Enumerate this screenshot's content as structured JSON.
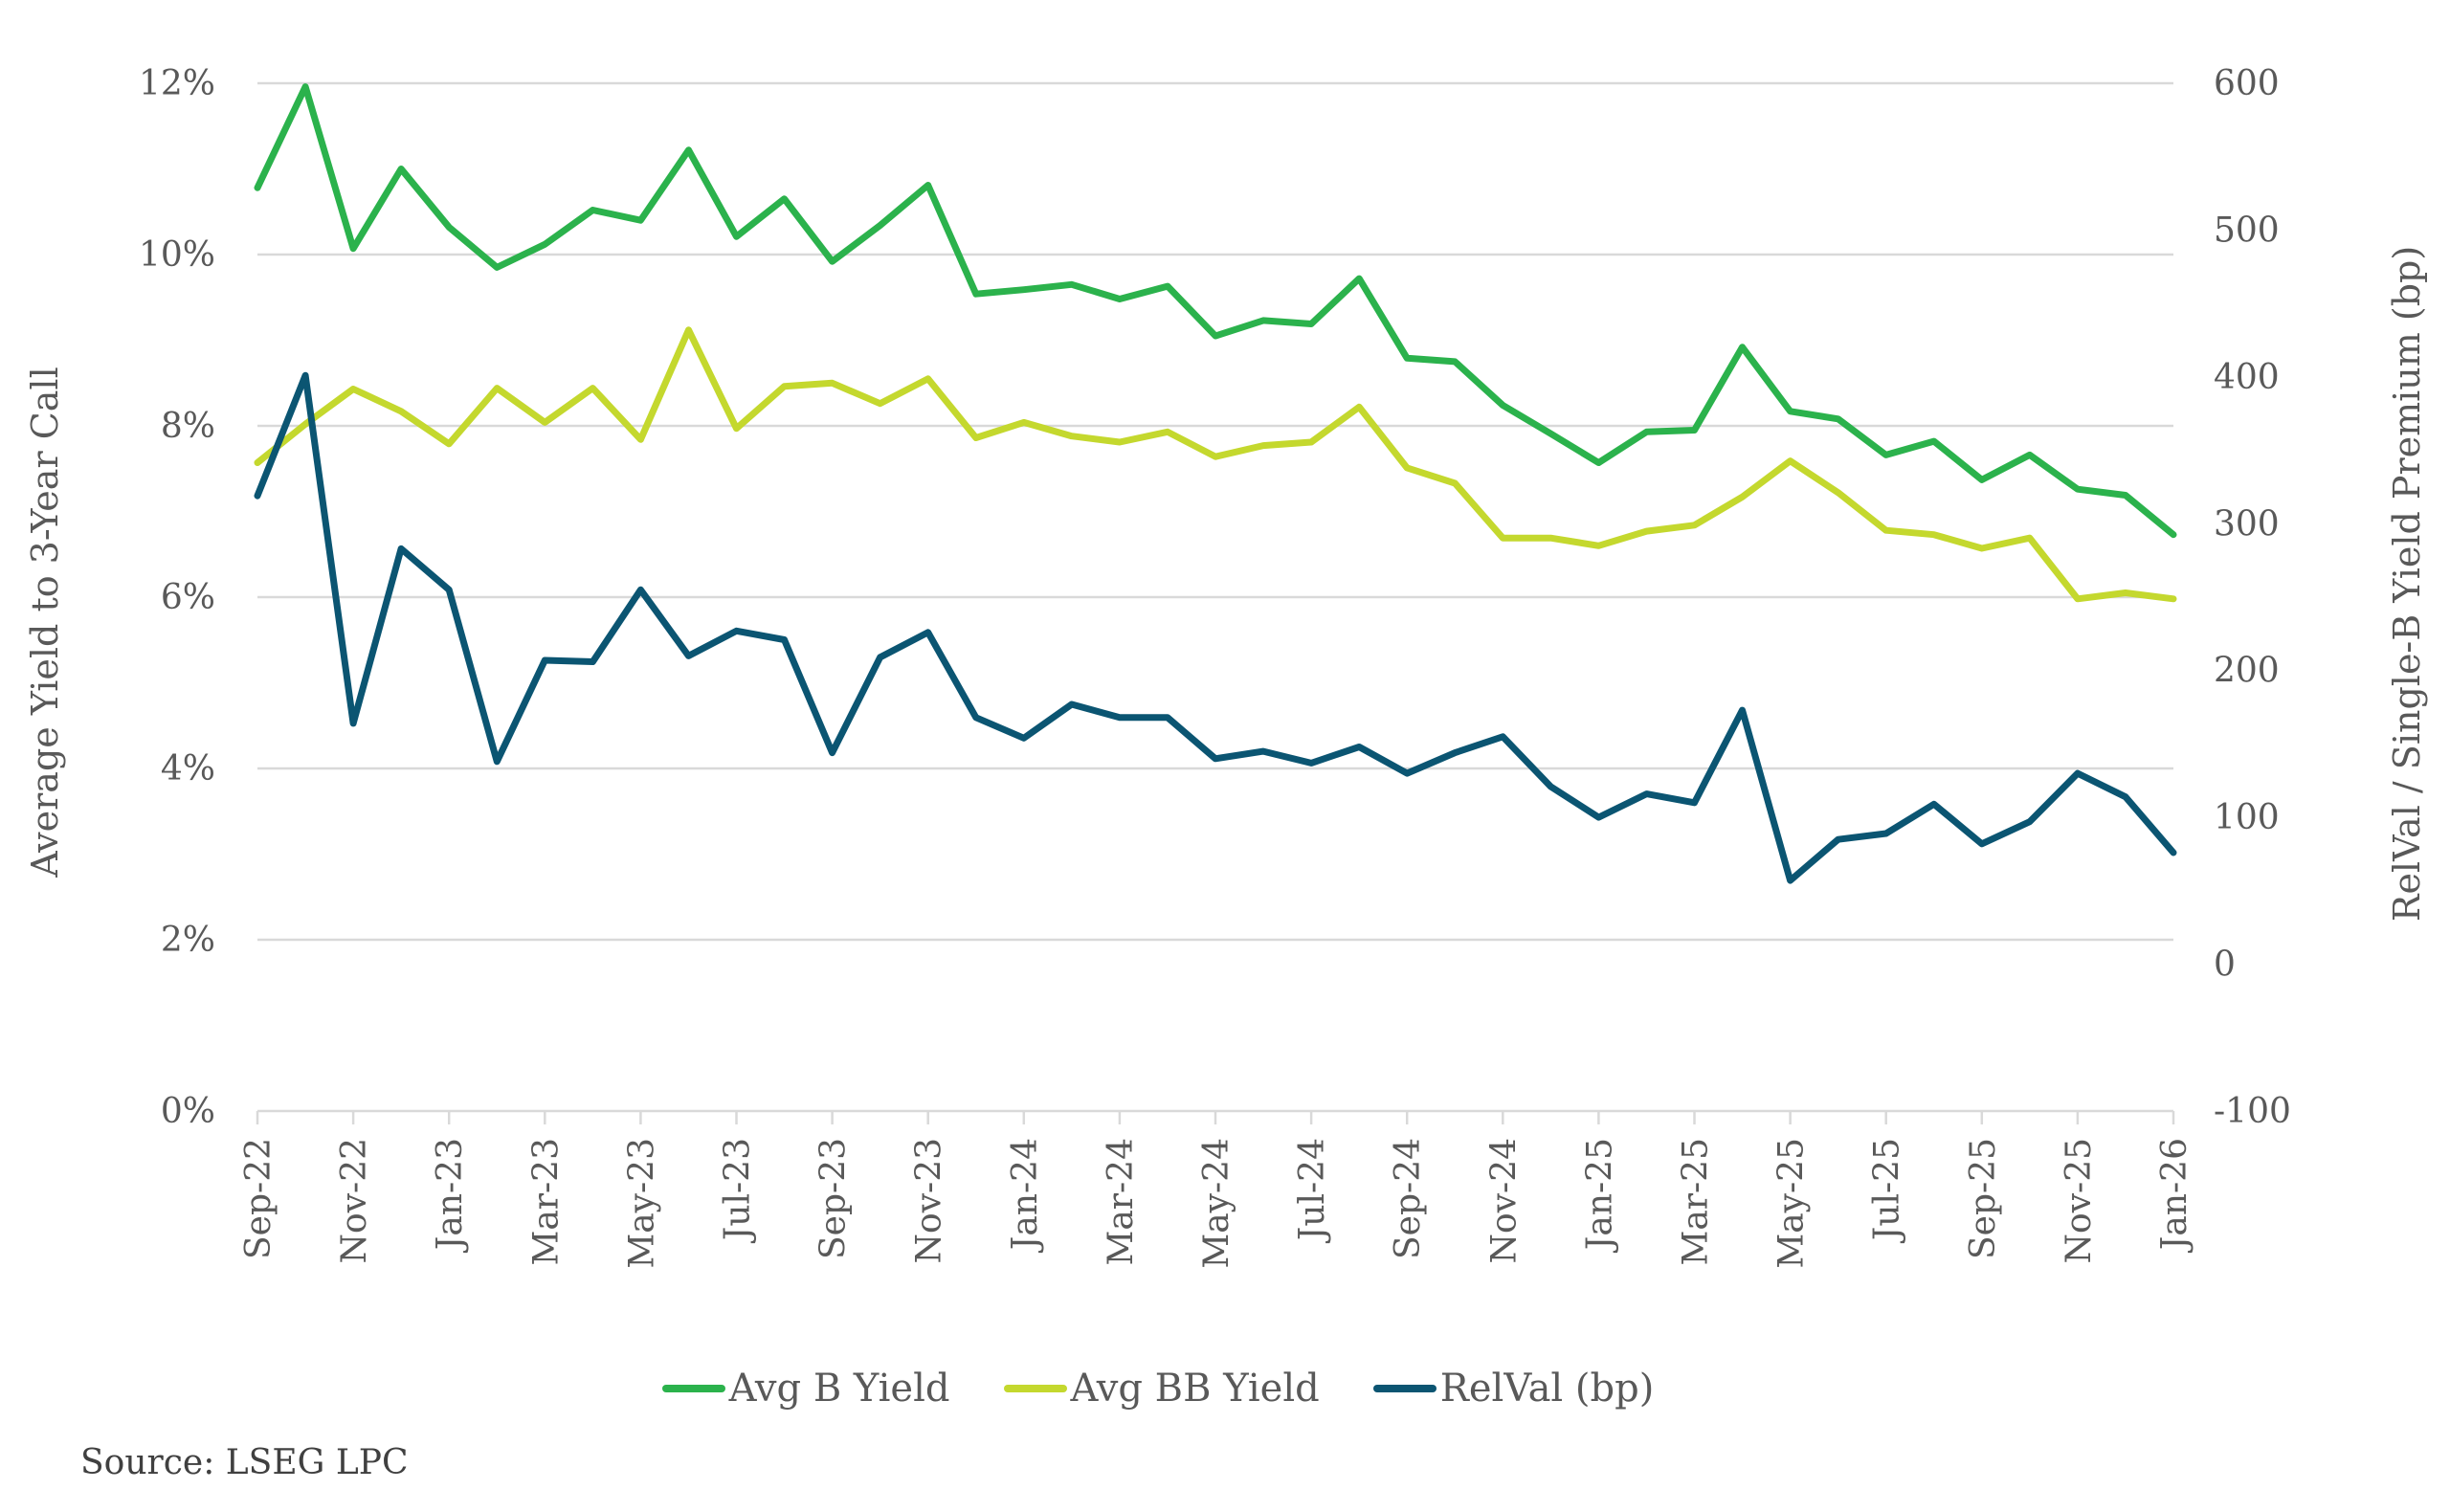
{
  "chart_data": {
    "type": "line",
    "title": "",
    "x": [
      "Sep-22",
      "Oct-22",
      "Nov-22",
      "Dec-22",
      "Jan-23",
      "Feb-23",
      "Mar-23",
      "Apr-23",
      "May-23",
      "Jun-23",
      "Jul-23",
      "Aug-23",
      "Sep-23",
      "Oct-23",
      "Nov-23",
      "Dec-23",
      "Jan-24",
      "Feb-24",
      "Mar-24",
      "Apr-24",
      "May-24",
      "Jun-24",
      "Jul-24",
      "Aug-24",
      "Sep-24",
      "Oct-24",
      "Nov-24",
      "Dec-24",
      "Jan-25",
      "Feb-25",
      "Mar-25",
      "Apr-25",
      "May-25",
      "Jun-25",
      "Jul-25",
      "Aug-25",
      "Sep-25",
      "Oct-25",
      "Nov-25",
      "Dec-25",
      "Jan-26"
    ],
    "xtick_labels": [
      "Sep-22",
      "Nov-22",
      "Jan-23",
      "Mar-23",
      "May-23",
      "Jul-23",
      "Sep-23",
      "Nov-23",
      "Jan-24",
      "Mar-24",
      "May-24",
      "Jul-24",
      "Sep-24",
      "Nov-24",
      "Jan-25",
      "Mar-25",
      "May-25",
      "Jul-25",
      "Sep-25",
      "Nov-25",
      "Jan-26"
    ],
    "ylabel": "Average Yield to 3-Year Call",
    "y2label": "RelVal / Single-B Yield Premium (bp)",
    "ylim": [
      0,
      12
    ],
    "y2lim": [
      -100,
      600
    ],
    "ytick_labels": [
      "0%",
      "2%",
      "4%",
      "6%",
      "8%",
      "10%",
      "12%"
    ],
    "ytick_values": [
      0,
      2,
      4,
      6,
      8,
      10,
      12
    ],
    "y2tick_labels": [
      "-100",
      "0",
      "100",
      "200",
      "300",
      "400",
      "500",
      "600"
    ],
    "y2tick_values": [
      -100,
      0,
      100,
      200,
      300,
      400,
      500,
      600
    ],
    "grid": true,
    "legend_position": "bottom-center",
    "series": [
      {
        "name": "Avg B Yield",
        "axis": "left",
        "color": "#2bb24c",
        "values": [
          10.78,
          11.96,
          10.07,
          11.0,
          10.32,
          9.85,
          10.12,
          10.52,
          10.4,
          11.22,
          10.21,
          10.65,
          9.92,
          10.34,
          10.81,
          9.54,
          9.59,
          9.65,
          9.48,
          9.63,
          9.05,
          9.23,
          9.19,
          9.72,
          8.79,
          8.75,
          8.24,
          7.91,
          7.57,
          7.93,
          7.95,
          8.92,
          8.17,
          8.08,
          7.66,
          7.82,
          7.37,
          7.66,
          7.26,
          7.19,
          6.73
        ]
      },
      {
        "name": "Avg BB Yield",
        "axis": "left",
        "color": "#c4d82e",
        "values": [
          7.57,
          8.02,
          8.43,
          8.17,
          7.79,
          8.44,
          8.04,
          8.44,
          7.84,
          9.12,
          7.97,
          8.46,
          8.5,
          8.26,
          8.55,
          7.86,
          8.04,
          7.88,
          7.81,
          7.93,
          7.64,
          7.77,
          7.81,
          8.22,
          7.51,
          7.33,
          6.69,
          6.69,
          6.6,
          6.77,
          6.84,
          7.17,
          7.59,
          7.22,
          6.78,
          6.73,
          6.57,
          6.69,
          5.98,
          6.05,
          5.98
        ]
      },
      {
        "name": "RelVal (bp)",
        "axis": "right",
        "color": "#0b5572",
        "values": [
          319,
          401,
          164,
          283,
          255,
          138,
          207,
          206,
          255,
          210,
          227,
          221,
          144,
          209,
          226,
          168,
          154,
          177,
          168,
          168,
          140,
          145,
          137,
          148,
          130,
          144,
          155,
          121,
          100,
          116,
          110,
          173,
          57,
          85,
          89,
          109,
          82,
          97,
          130,
          114,
          76
        ]
      }
    ]
  },
  "legend": {
    "items": [
      {
        "label": "Avg B Yield",
        "color": "#2bb24c"
      },
      {
        "label": "Avg BB Yield",
        "color": "#c4d82e"
      },
      {
        "label": "RelVal (bp)",
        "color": "#0b5572"
      }
    ]
  },
  "source": "Source: LSEG LPC"
}
